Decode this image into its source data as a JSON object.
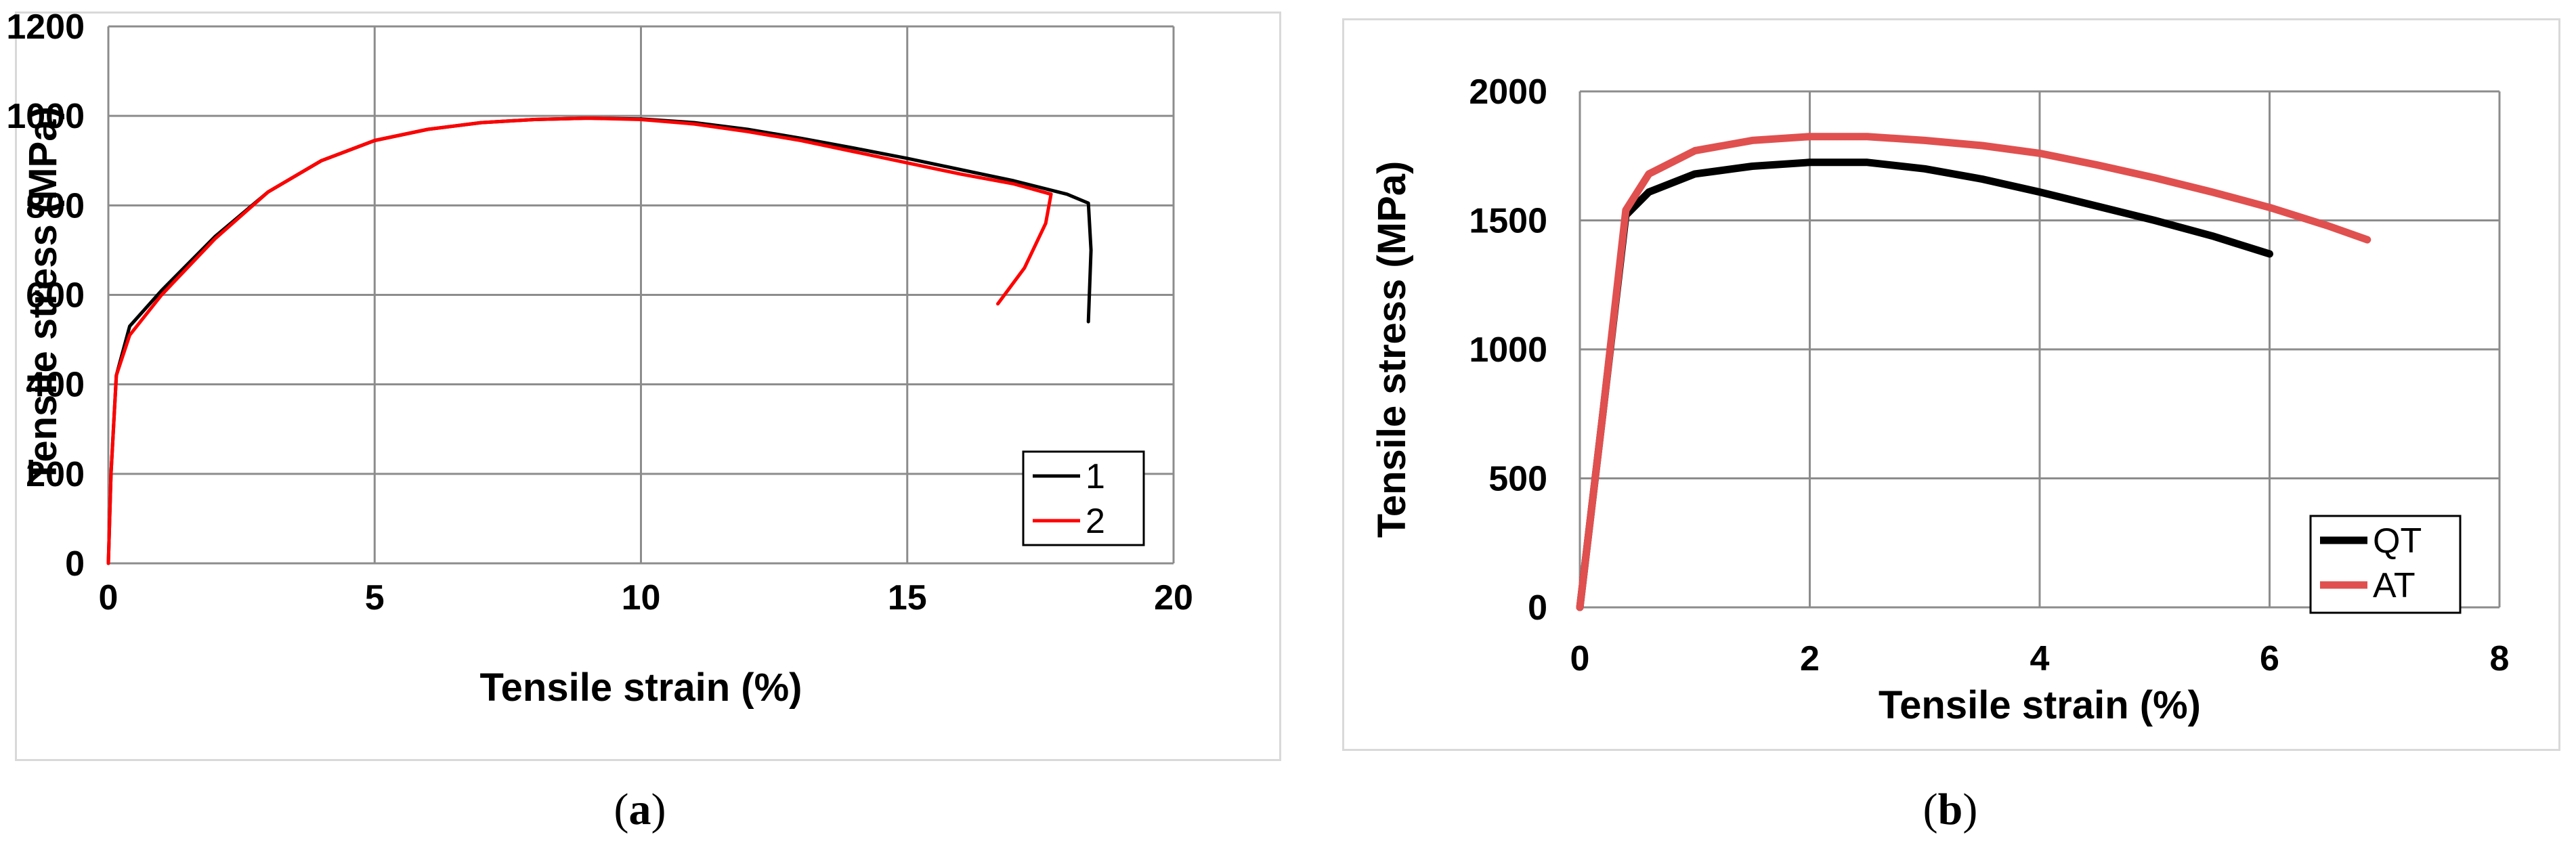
{
  "chart_data": [
    {
      "type": "line",
      "caption": {
        "open": "(",
        "letter": "a",
        "close": ")"
      },
      "xlabel": "Tensile strain (%)",
      "ylabel": "Tensile stress (MPa)",
      "xlim": [
        0,
        20
      ],
      "ylim": [
        0,
        1200
      ],
      "xticks": [
        0,
        5,
        10,
        15,
        20
      ],
      "yticks": [
        0,
        200,
        400,
        600,
        800,
        1000,
        1200
      ],
      "grid": true,
      "legend_position": "bottom-right",
      "series": [
        {
          "name": "1",
          "color": "#000000",
          "points": [
            [
              0,
              0
            ],
            [
              0.05,
              200
            ],
            [
              0.15,
              420
            ],
            [
              0.4,
              530
            ],
            [
              1,
              610
            ],
            [
              2,
              730
            ],
            [
              3,
              830
            ],
            [
              4,
              900
            ],
            [
              5,
              945
            ],
            [
              6,
              970
            ],
            [
              7,
              985
            ],
            [
              8,
              992
            ],
            [
              9,
              995
            ],
            [
              10,
              993
            ],
            [
              11,
              985
            ],
            [
              12,
              970
            ],
            [
              13,
              950
            ],
            [
              14,
              928
            ],
            [
              15,
              905
            ],
            [
              16,
              880
            ],
            [
              17,
              855
            ],
            [
              18,
              825
            ],
            [
              18.4,
              805
            ],
            [
              18.45,
              700
            ],
            [
              18.4,
              540
            ]
          ]
        },
        {
          "name": "2",
          "color": "#ff0000",
          "points": [
            [
              0,
              0
            ],
            [
              0.05,
              200
            ],
            [
              0.15,
              420
            ],
            [
              0.4,
              510
            ],
            [
              1,
              600
            ],
            [
              2,
              725
            ],
            [
              3,
              830
            ],
            [
              4,
              900
            ],
            [
              5,
              945
            ],
            [
              6,
              970
            ],
            [
              7,
              985
            ],
            [
              8,
              992
            ],
            [
              9,
              995
            ],
            [
              10,
              992
            ],
            [
              11,
              982
            ],
            [
              12,
              965
            ],
            [
              13,
              945
            ],
            [
              14,
              920
            ],
            [
              15,
              895
            ],
            [
              16,
              870
            ],
            [
              17,
              848
            ],
            [
              17.7,
              825
            ],
            [
              17.6,
              760
            ],
            [
              17.2,
              660
            ],
            [
              16.7,
              580
            ]
          ]
        }
      ]
    },
    {
      "type": "line",
      "caption": {
        "open": "(",
        "letter": "b",
        "close": ")"
      },
      "xlabel": "Tensile strain (%)",
      "ylabel": "Tensile stress (MPa)",
      "xlim": [
        0,
        8
      ],
      "ylim": [
        0,
        2000
      ],
      "xticks": [
        0,
        2,
        4,
        6,
        8
      ],
      "yticks": [
        0,
        500,
        1000,
        1500,
        2000
      ],
      "grid": true,
      "legend_position": "bottom-right",
      "series": [
        {
          "name": "QT",
          "color": "#000000",
          "points": [
            [
              0,
              0
            ],
            [
              0.2,
              750
            ],
            [
              0.4,
              1520
            ],
            [
              0.6,
              1610
            ],
            [
              1,
              1680
            ],
            [
              1.5,
              1710
            ],
            [
              2,
              1725
            ],
            [
              2.5,
              1725
            ],
            [
              3,
              1700
            ],
            [
              3.5,
              1660
            ],
            [
              4,
              1610
            ],
            [
              4.5,
              1555
            ],
            [
              5,
              1500
            ],
            [
              5.5,
              1440
            ],
            [
              6,
              1370
            ]
          ]
        },
        {
          "name": "AT",
          "color": "#e0504f",
          "points": [
            [
              0,
              0
            ],
            [
              0.2,
              750
            ],
            [
              0.4,
              1540
            ],
            [
              0.6,
              1680
            ],
            [
              1,
              1770
            ],
            [
              1.5,
              1810
            ],
            [
              2,
              1825
            ],
            [
              2.5,
              1825
            ],
            [
              3,
              1810
            ],
            [
              3.5,
              1790
            ],
            [
              4,
              1760
            ],
            [
              4.5,
              1715
            ],
            [
              5,
              1665
            ],
            [
              5.5,
              1610
            ],
            [
              6,
              1550
            ],
            [
              6.5,
              1480
            ],
            [
              6.85,
              1425
            ]
          ]
        }
      ]
    }
  ]
}
